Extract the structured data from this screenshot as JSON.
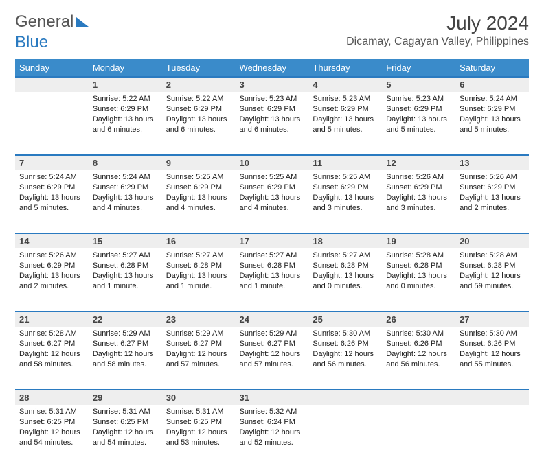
{
  "brand": {
    "part1": "General",
    "part2": "Blue"
  },
  "title": "July 2024",
  "location": "Dicamay, Cagayan Valley, Philippines",
  "colors": {
    "header_bg": "#3a8bca",
    "header_text": "#ffffff",
    "daynum_bg": "#eeeeee",
    "rule": "#2a7ac0",
    "body_text": "#222222"
  },
  "day_headers": [
    "Sunday",
    "Monday",
    "Tuesday",
    "Wednesday",
    "Thursday",
    "Friday",
    "Saturday"
  ],
  "weeks": [
    {
      "nums": [
        "",
        "1",
        "2",
        "3",
        "4",
        "5",
        "6"
      ],
      "cells": [
        {
          "sunrise": "",
          "sunset": "",
          "daylight": ""
        },
        {
          "sunrise": "Sunrise: 5:22 AM",
          "sunset": "Sunset: 6:29 PM",
          "daylight": "Daylight: 13 hours and 6 minutes."
        },
        {
          "sunrise": "Sunrise: 5:22 AM",
          "sunset": "Sunset: 6:29 PM",
          "daylight": "Daylight: 13 hours and 6 minutes."
        },
        {
          "sunrise": "Sunrise: 5:23 AM",
          "sunset": "Sunset: 6:29 PM",
          "daylight": "Daylight: 13 hours and 6 minutes."
        },
        {
          "sunrise": "Sunrise: 5:23 AM",
          "sunset": "Sunset: 6:29 PM",
          "daylight": "Daylight: 13 hours and 5 minutes."
        },
        {
          "sunrise": "Sunrise: 5:23 AM",
          "sunset": "Sunset: 6:29 PM",
          "daylight": "Daylight: 13 hours and 5 minutes."
        },
        {
          "sunrise": "Sunrise: 5:24 AM",
          "sunset": "Sunset: 6:29 PM",
          "daylight": "Daylight: 13 hours and 5 minutes."
        }
      ]
    },
    {
      "nums": [
        "7",
        "8",
        "9",
        "10",
        "11",
        "12",
        "13"
      ],
      "cells": [
        {
          "sunrise": "Sunrise: 5:24 AM",
          "sunset": "Sunset: 6:29 PM",
          "daylight": "Daylight: 13 hours and 5 minutes."
        },
        {
          "sunrise": "Sunrise: 5:24 AM",
          "sunset": "Sunset: 6:29 PM",
          "daylight": "Daylight: 13 hours and 4 minutes."
        },
        {
          "sunrise": "Sunrise: 5:25 AM",
          "sunset": "Sunset: 6:29 PM",
          "daylight": "Daylight: 13 hours and 4 minutes."
        },
        {
          "sunrise": "Sunrise: 5:25 AM",
          "sunset": "Sunset: 6:29 PM",
          "daylight": "Daylight: 13 hours and 4 minutes."
        },
        {
          "sunrise": "Sunrise: 5:25 AM",
          "sunset": "Sunset: 6:29 PM",
          "daylight": "Daylight: 13 hours and 3 minutes."
        },
        {
          "sunrise": "Sunrise: 5:26 AM",
          "sunset": "Sunset: 6:29 PM",
          "daylight": "Daylight: 13 hours and 3 minutes."
        },
        {
          "sunrise": "Sunrise: 5:26 AM",
          "sunset": "Sunset: 6:29 PM",
          "daylight": "Daylight: 13 hours and 2 minutes."
        }
      ]
    },
    {
      "nums": [
        "14",
        "15",
        "16",
        "17",
        "18",
        "19",
        "20"
      ],
      "cells": [
        {
          "sunrise": "Sunrise: 5:26 AM",
          "sunset": "Sunset: 6:29 PM",
          "daylight": "Daylight: 13 hours and 2 minutes."
        },
        {
          "sunrise": "Sunrise: 5:27 AM",
          "sunset": "Sunset: 6:28 PM",
          "daylight": "Daylight: 13 hours and 1 minute."
        },
        {
          "sunrise": "Sunrise: 5:27 AM",
          "sunset": "Sunset: 6:28 PM",
          "daylight": "Daylight: 13 hours and 1 minute."
        },
        {
          "sunrise": "Sunrise: 5:27 AM",
          "sunset": "Sunset: 6:28 PM",
          "daylight": "Daylight: 13 hours and 1 minute."
        },
        {
          "sunrise": "Sunrise: 5:27 AM",
          "sunset": "Sunset: 6:28 PM",
          "daylight": "Daylight: 13 hours and 0 minutes."
        },
        {
          "sunrise": "Sunrise: 5:28 AM",
          "sunset": "Sunset: 6:28 PM",
          "daylight": "Daylight: 13 hours and 0 minutes."
        },
        {
          "sunrise": "Sunrise: 5:28 AM",
          "sunset": "Sunset: 6:28 PM",
          "daylight": "Daylight: 12 hours and 59 minutes."
        }
      ]
    },
    {
      "nums": [
        "21",
        "22",
        "23",
        "24",
        "25",
        "26",
        "27"
      ],
      "cells": [
        {
          "sunrise": "Sunrise: 5:28 AM",
          "sunset": "Sunset: 6:27 PM",
          "daylight": "Daylight: 12 hours and 58 minutes."
        },
        {
          "sunrise": "Sunrise: 5:29 AM",
          "sunset": "Sunset: 6:27 PM",
          "daylight": "Daylight: 12 hours and 58 minutes."
        },
        {
          "sunrise": "Sunrise: 5:29 AM",
          "sunset": "Sunset: 6:27 PM",
          "daylight": "Daylight: 12 hours and 57 minutes."
        },
        {
          "sunrise": "Sunrise: 5:29 AM",
          "sunset": "Sunset: 6:27 PM",
          "daylight": "Daylight: 12 hours and 57 minutes."
        },
        {
          "sunrise": "Sunrise: 5:30 AM",
          "sunset": "Sunset: 6:26 PM",
          "daylight": "Daylight: 12 hours and 56 minutes."
        },
        {
          "sunrise": "Sunrise: 5:30 AM",
          "sunset": "Sunset: 6:26 PM",
          "daylight": "Daylight: 12 hours and 56 minutes."
        },
        {
          "sunrise": "Sunrise: 5:30 AM",
          "sunset": "Sunset: 6:26 PM",
          "daylight": "Daylight: 12 hours and 55 minutes."
        }
      ]
    },
    {
      "nums": [
        "28",
        "29",
        "30",
        "31",
        "",
        "",
        ""
      ],
      "cells": [
        {
          "sunrise": "Sunrise: 5:31 AM",
          "sunset": "Sunset: 6:25 PM",
          "daylight": "Daylight: 12 hours and 54 minutes."
        },
        {
          "sunrise": "Sunrise: 5:31 AM",
          "sunset": "Sunset: 6:25 PM",
          "daylight": "Daylight: 12 hours and 54 minutes."
        },
        {
          "sunrise": "Sunrise: 5:31 AM",
          "sunset": "Sunset: 6:25 PM",
          "daylight": "Daylight: 12 hours and 53 minutes."
        },
        {
          "sunrise": "Sunrise: 5:32 AM",
          "sunset": "Sunset: 6:24 PM",
          "daylight": "Daylight: 12 hours and 52 minutes."
        },
        {
          "sunrise": "",
          "sunset": "",
          "daylight": ""
        },
        {
          "sunrise": "",
          "sunset": "",
          "daylight": ""
        },
        {
          "sunrise": "",
          "sunset": "",
          "daylight": ""
        }
      ]
    }
  ]
}
